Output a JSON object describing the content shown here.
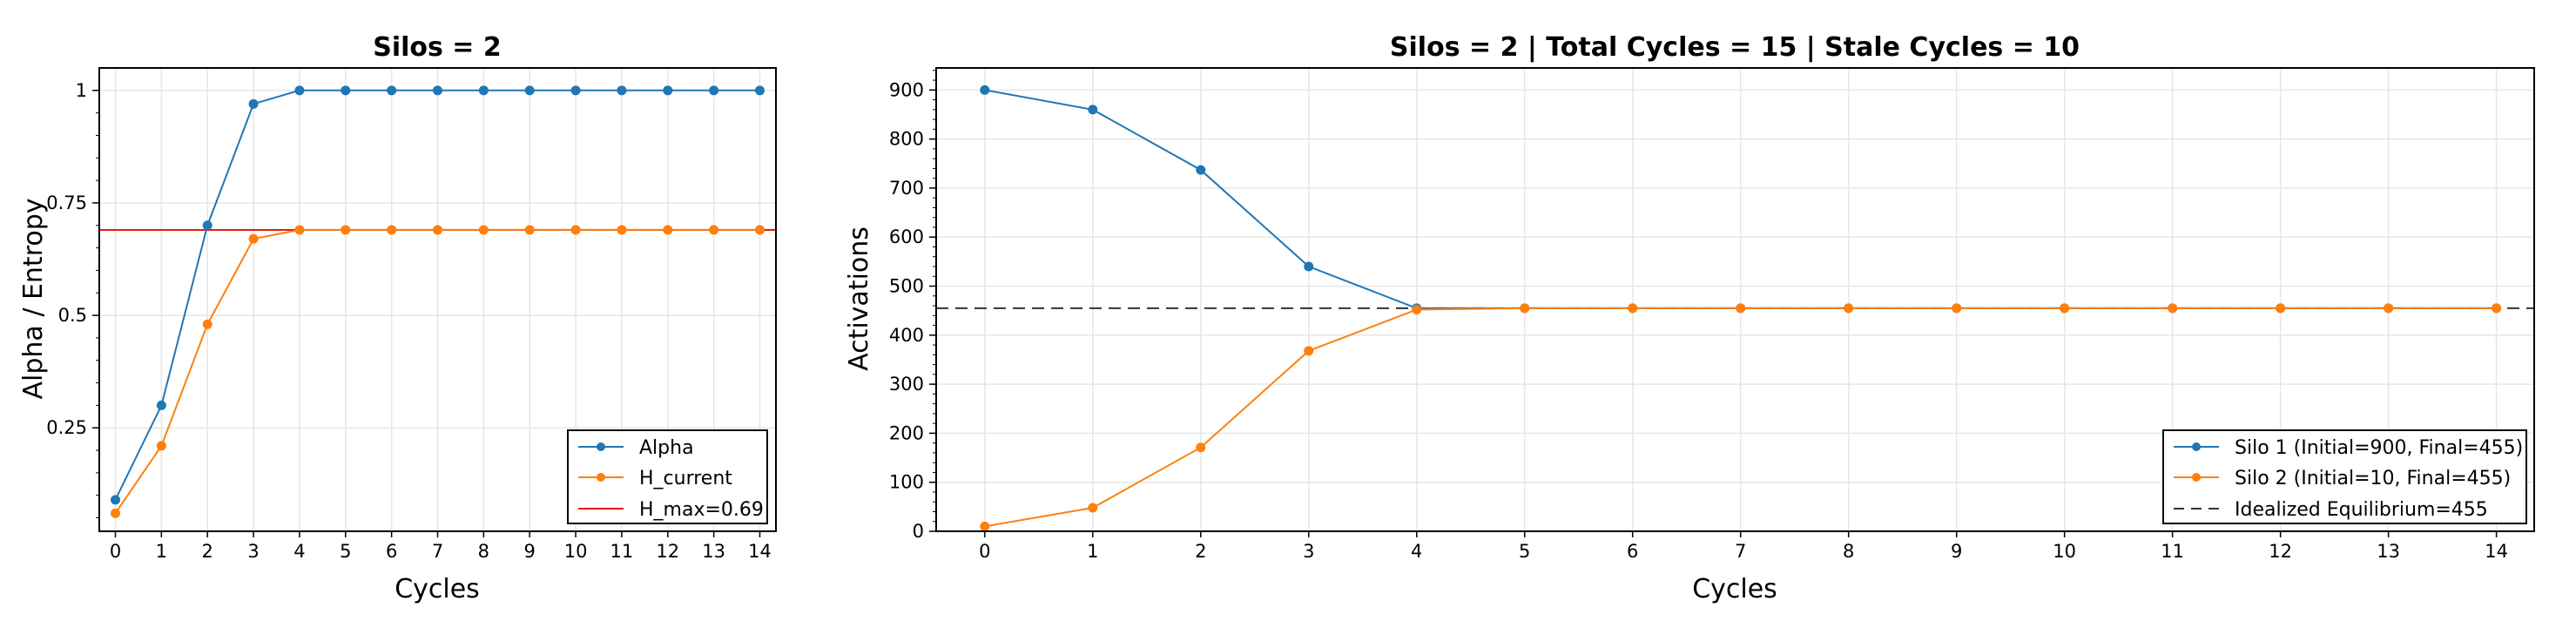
{
  "chart_data": [
    {
      "type": "line",
      "title": "Silos = 2",
      "xlabel": "Cycles",
      "ylabel": "Alpha / Entropy",
      "xlim": [
        -0.35,
        14.35
      ],
      "ylim": [
        0.02,
        1.05
      ],
      "x": [
        0,
        1,
        2,
        3,
        4,
        5,
        6,
        7,
        8,
        9,
        10,
        11,
        12,
        13,
        14
      ],
      "xticks": [
        "0",
        "1",
        "2",
        "3",
        "4",
        "5",
        "6",
        "7",
        "8",
        "9",
        "10",
        "11",
        "12",
        "13",
        "14"
      ],
      "yticks": [
        0.25,
        0.5,
        0.75,
        1
      ],
      "ytick_labels": [
        "0.25",
        "0.5",
        "0.75",
        "1"
      ],
      "grid": true,
      "legend_position": "bottom-right",
      "series": [
        {
          "name": "Alpha",
          "color": "#1f77b4",
          "marker": "circle",
          "values": [
            0.09,
            0.3,
            0.7,
            0.97,
            1.0,
            1.0,
            1.0,
            1.0,
            1.0,
            1.0,
            1.0,
            1.0,
            1.0,
            1.0,
            1.0
          ]
        },
        {
          "name": "H_current",
          "color": "#ff7f0e",
          "marker": "circle",
          "values": [
            0.06,
            0.21,
            0.48,
            0.67,
            0.69,
            0.69,
            0.69,
            0.69,
            0.69,
            0.69,
            0.69,
            0.69,
            0.69,
            0.69,
            0.69
          ]
        }
      ],
      "hlines": [
        {
          "name": "H_max=0.69",
          "value": 0.69,
          "color": "#e8190a",
          "style": "solid"
        }
      ]
    },
    {
      "type": "line",
      "title": "Silos = 2 | Total Cycles = 15 | Stale Cycles = 10",
      "xlabel": "Cycles",
      "ylabel": "Activations",
      "xlim": [
        -0.45,
        14.35
      ],
      "ylim": [
        0,
        945
      ],
      "x": [
        0,
        1,
        2,
        3,
        4,
        5,
        6,
        7,
        8,
        9,
        10,
        11,
        12,
        13,
        14
      ],
      "xticks": [
        "0",
        "1",
        "2",
        "3",
        "4",
        "5",
        "6",
        "7",
        "8",
        "9",
        "10",
        "11",
        "12",
        "13",
        "14"
      ],
      "yticks": [
        0,
        100,
        200,
        300,
        400,
        500,
        600,
        700,
        800,
        900
      ],
      "ytick_labels": [
        "0",
        "100",
        "200",
        "300",
        "400",
        "500",
        "600",
        "700",
        "800",
        "900"
      ],
      "grid": true,
      "legend_position": "bottom-right",
      "series": [
        {
          "name": "Silo 1 (Initial=900, Final=455)",
          "color": "#1f77b4",
          "marker": "circle",
          "values": [
            900,
            860,
            737,
            540,
            455,
            455,
            455,
            455,
            455,
            455,
            455,
            455,
            455,
            455,
            455
          ]
        },
        {
          "name": "Silo 2 (Initial=10, Final=455)",
          "color": "#ff7f0e",
          "marker": "circle",
          "values": [
            10,
            48,
            171,
            368,
            452,
            455,
            455,
            455,
            455,
            455,
            455,
            455,
            455,
            455,
            455
          ]
        }
      ],
      "hlines": [
        {
          "name": "Idealized Equilibrium=455",
          "value": 455,
          "color": "#333333",
          "style": "dashed"
        }
      ]
    }
  ]
}
